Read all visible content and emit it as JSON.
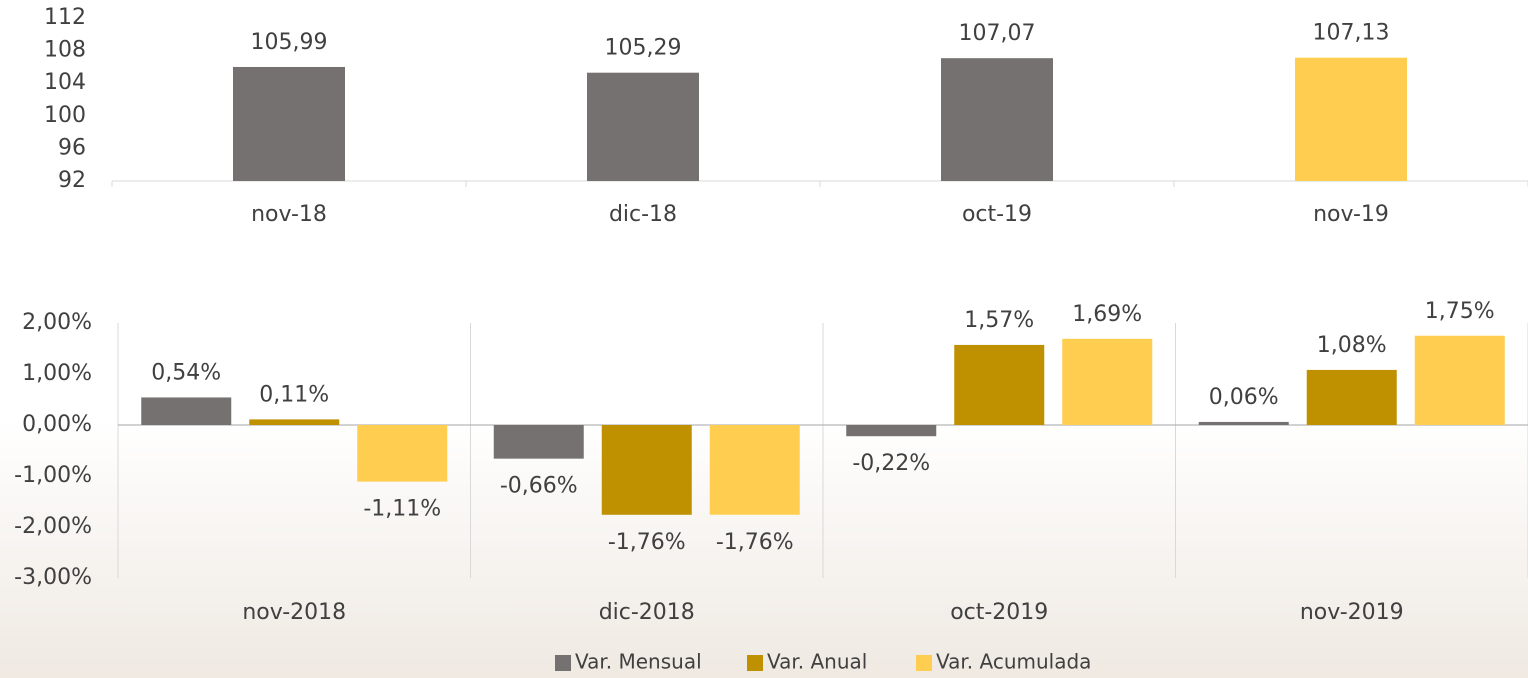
{
  "chart_data": [
    {
      "type": "bar",
      "categories": [
        "nov-18",
        "dic-18",
        "oct-19",
        "nov-19"
      ],
      "values": [
        105.99,
        105.29,
        107.07,
        107.13
      ],
      "value_labels": [
        "105,99",
        "105,29",
        "107,07",
        "107,13"
      ],
      "colors": [
        "#767171",
        "#767171",
        "#767171",
        "#ffcd4f"
      ],
      "ylim": [
        92,
        112
      ],
      "yticks": [
        92,
        96,
        100,
        104,
        108,
        112
      ]
    },
    {
      "type": "grouped_bar",
      "categories": [
        "nov-2018",
        "dic-2018",
        "oct-2019",
        "nov-2019"
      ],
      "series": [
        {
          "name": "Var. Mensual",
          "color": "#767171",
          "values": [
            0.54,
            -0.66,
            -0.22,
            0.06
          ],
          "value_labels": [
            "0,54%",
            "-0,66%",
            "-0,22%",
            "0,06%"
          ]
        },
        {
          "name": "Var. Anual",
          "color": "#bf9000",
          "values": [
            0.11,
            -1.76,
            1.57,
            1.08
          ],
          "value_labels": [
            "0,11%",
            "-1,76%",
            "1,57%",
            "1,08%"
          ]
        },
        {
          "name": "Var. Acumulada",
          "color": "#ffcd4f",
          "values": [
            -1.11,
            -1.76,
            1.69,
            1.75
          ],
          "value_labels": [
            "-1,11%",
            "-1,76%",
            "1,69%",
            "1,75%"
          ]
        }
      ],
      "ylim": [
        -3,
        2
      ],
      "yticks": [
        {
          "value": -3,
          "label": "-3,00%"
        },
        {
          "value": -2,
          "label": "-2,00%"
        },
        {
          "value": -1,
          "label": "-1,00%"
        },
        {
          "value": 0,
          "label": "0,00%"
        },
        {
          "value": 1,
          "label": "1,00%"
        },
        {
          "value": 2,
          "label": "2,00%"
        }
      ],
      "legend": "bottom"
    }
  ]
}
